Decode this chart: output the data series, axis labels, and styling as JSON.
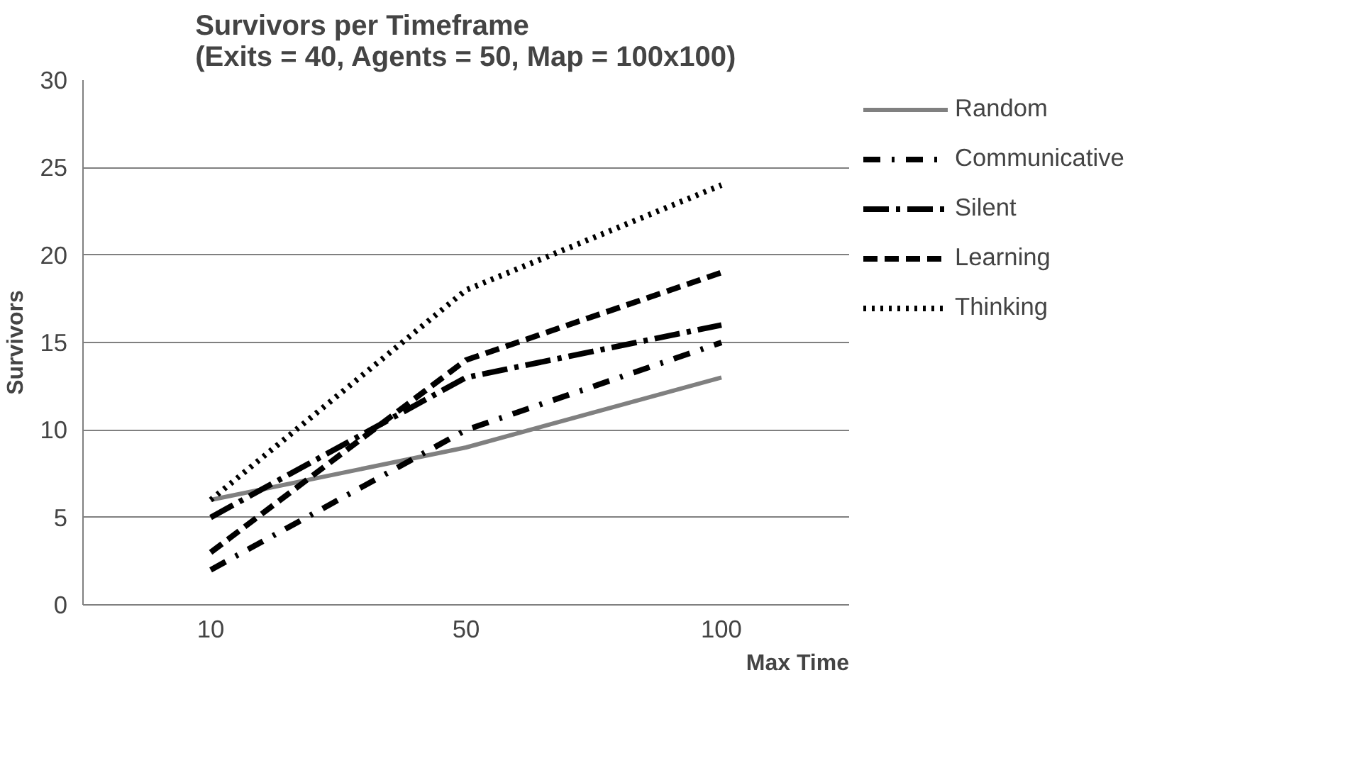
{
  "chart_data": {
    "type": "line",
    "title": "Survivors per Timeframe\n(Exits = 40, Agents = 50, Map = 100x100)",
    "xlabel": "Max Time",
    "ylabel": "Survivors",
    "categories": [
      "10",
      "50",
      "100"
    ],
    "series": [
      {
        "name": "Random",
        "color": "#808080",
        "values": [
          6,
          9,
          13
        ],
        "line_style": "solid"
      },
      {
        "name": "Communicative",
        "color": "#000000",
        "values": [
          2,
          10,
          15
        ],
        "line_style": "dashdot"
      },
      {
        "name": "Silent",
        "color": "#000000",
        "values": [
          5,
          13,
          16
        ],
        "line_style": "longdashdot"
      },
      {
        "name": "Learning",
        "color": "#000000",
        "values": [
          3,
          14,
          19
        ],
        "line_style": "dashed"
      },
      {
        "name": "Thinking",
        "color": "#000000",
        "values": [
          6,
          18,
          24
        ],
        "line_style": "dotted"
      }
    ],
    "ylim": [
      0,
      30
    ],
    "yticks": [
      0,
      5,
      10,
      15,
      20,
      25,
      30
    ],
    "grid": "y",
    "legend": "right",
    "marker": "none"
  }
}
